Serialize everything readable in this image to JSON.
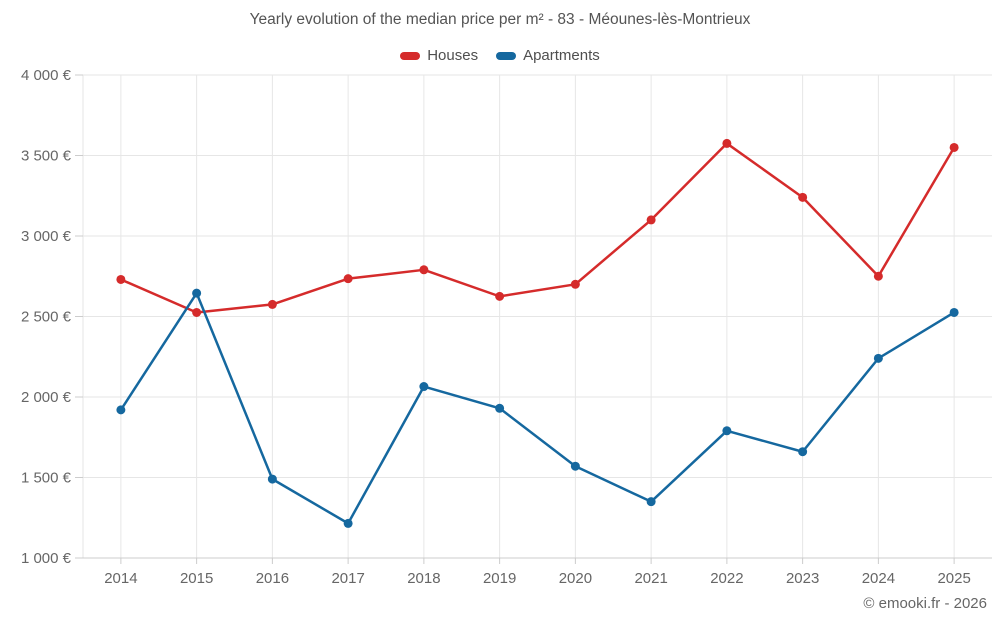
{
  "title": "Yearly evolution of the median price per m² - 83 - Méounes-lès-Montrieux",
  "attribution": "© emooki.fr - 2026",
  "colors": {
    "houses": "#d52b2b",
    "apartments": "#15689f",
    "grid": "#e6e6e6",
    "axis": "#cccccc",
    "tick_text": "#666666",
    "title_text": "#545454"
  },
  "chart_data": {
    "type": "line",
    "categories": [
      "2014",
      "2015",
      "2016",
      "2017",
      "2018",
      "2019",
      "2020",
      "2021",
      "2022",
      "2023",
      "2024",
      "2025"
    ],
    "series": [
      {
        "name": "Houses",
        "color": "#d52b2b",
        "values": [
          2730,
          2525,
          2575,
          2735,
          2790,
          2625,
          2700,
          3100,
          3575,
          3240,
          2750,
          3550
        ]
      },
      {
        "name": "Apartments",
        "color": "#15689f",
        "values": [
          1920,
          2645,
          1490,
          1215,
          2065,
          1930,
          1570,
          1350,
          1790,
          1660,
          2240,
          2525
        ]
      }
    ],
    "title": "Yearly evolution of the median price per m² - 83 - Méounes-lès-Montrieux",
    "xlabel": "",
    "ylabel": "",
    "ylim": [
      1000,
      4000
    ],
    "y_ticks": [
      1000,
      1500,
      2000,
      2500,
      3000,
      3500,
      4000
    ],
    "y_tick_labels": [
      "1 000 €",
      "1 500 €",
      "2 000 €",
      "2 500 €",
      "3 000 €",
      "3 500 €",
      "4 000 €"
    ],
    "grid": true,
    "legend_position": "top",
    "marker": "circle",
    "unit": "€ per m²"
  }
}
